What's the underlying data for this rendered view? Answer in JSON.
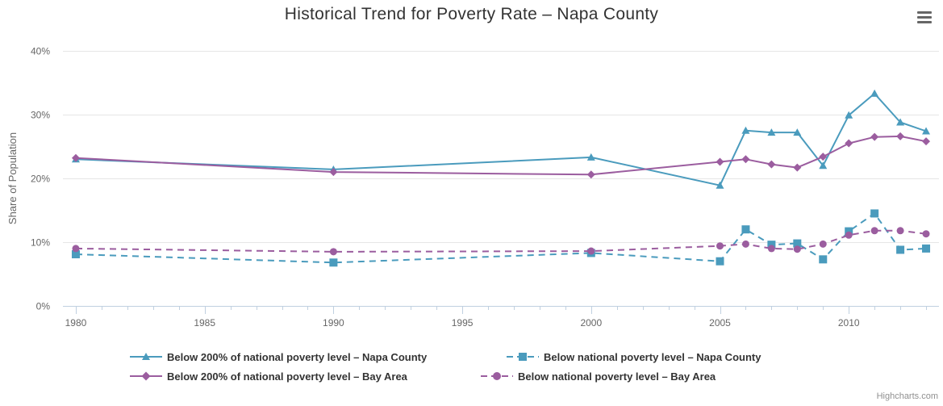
{
  "chart_data": {
    "type": "line",
    "title": "Historical Trend for Poverty Rate – Napa County",
    "xlabel": "",
    "ylabel": "Share of Population",
    "xlim": [
      1979.5,
      2013.5
    ],
    "ylim": [
      0,
      40
    ],
    "x_ticks": [
      "1980",
      "1985",
      "1990",
      "1995",
      "2000",
      "2005",
      "2010"
    ],
    "y_ticks": [
      "0%",
      "10%",
      "20%",
      "30%",
      "40%"
    ],
    "grid": true,
    "legend_position": "bottom",
    "series": [
      {
        "name": "Below 200% of national poverty level – Napa County",
        "color": "#4a9bbd",
        "dash": "solid",
        "marker": "triangle",
        "points": [
          [
            1980,
            23.0
          ],
          [
            1990,
            21.4
          ],
          [
            2000,
            23.3
          ],
          [
            2005,
            18.9
          ],
          [
            2006,
            27.5
          ],
          [
            2007,
            27.2
          ],
          [
            2008,
            27.2
          ],
          [
            2009,
            22.0
          ],
          [
            2010,
            29.9
          ],
          [
            2011,
            33.3
          ],
          [
            2012,
            28.8
          ],
          [
            2013,
            27.4
          ]
        ]
      },
      {
        "name": "Below national poverty level – Napa County",
        "color": "#4a9bbd",
        "dash": "dashed",
        "marker": "square",
        "points": [
          [
            1980,
            8.1
          ],
          [
            1990,
            6.8
          ],
          [
            2000,
            8.3
          ],
          [
            2005,
            7.0
          ],
          [
            2006,
            12.0
          ],
          [
            2007,
            9.6
          ],
          [
            2008,
            9.8
          ],
          [
            2009,
            7.3
          ],
          [
            2010,
            11.7
          ],
          [
            2011,
            14.5
          ],
          [
            2012,
            8.8
          ],
          [
            2013,
            9.0
          ]
        ]
      },
      {
        "name": "Below 200% of national poverty level – Bay Area",
        "color": "#9b5d9f",
        "dash": "solid",
        "marker": "diamond",
        "points": [
          [
            1980,
            23.2
          ],
          [
            1990,
            21.0
          ],
          [
            2000,
            20.6
          ],
          [
            2005,
            22.6
          ],
          [
            2006,
            23.0
          ],
          [
            2007,
            22.2
          ],
          [
            2008,
            21.7
          ],
          [
            2009,
            23.4
          ],
          [
            2010,
            25.5
          ],
          [
            2011,
            26.5
          ],
          [
            2012,
            26.6
          ],
          [
            2013,
            25.8
          ]
        ]
      },
      {
        "name": "Below national poverty level – Bay Area",
        "color": "#9b5d9f",
        "dash": "dashed",
        "marker": "circle",
        "points": [
          [
            1980,
            9.0
          ],
          [
            1990,
            8.5
          ],
          [
            2000,
            8.6
          ],
          [
            2005,
            9.4
          ],
          [
            2006,
            9.7
          ],
          [
            2007,
            9.0
          ],
          [
            2008,
            8.9
          ],
          [
            2009,
            9.7
          ],
          [
            2010,
            11.1
          ],
          [
            2011,
            11.8
          ],
          [
            2012,
            11.8
          ],
          [
            2013,
            11.3
          ]
        ]
      }
    ]
  },
  "credits": "Highcharts.com",
  "menu": {
    "icon": "hamburger-menu-icon"
  }
}
